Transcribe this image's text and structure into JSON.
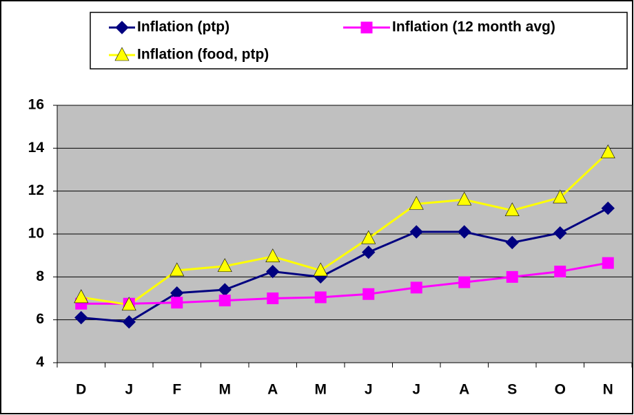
{
  "chart_data": {
    "type": "line",
    "categories": [
      "D",
      "J",
      "F",
      "M",
      "A",
      "M",
      "J",
      "J",
      "A",
      "S",
      "O",
      "N"
    ],
    "series": [
      {
        "name": "Inflation (ptp)",
        "color": "#000080",
        "marker": "diamond",
        "values": [
          6.1,
          5.9,
          7.25,
          7.4,
          8.25,
          8.0,
          9.15,
          10.1,
          10.1,
          9.6,
          10.05,
          11.2
        ]
      },
      {
        "name": "Inflation (12 month avg)",
        "color": "#ff00ff",
        "marker": "square",
        "values": [
          6.75,
          6.75,
          6.8,
          6.9,
          7.0,
          7.05,
          7.2,
          7.5,
          7.75,
          8.0,
          8.25,
          8.65
        ]
      },
      {
        "name": "Inflation (food, ptp)",
        "color": "#ffff00",
        "marker": "triangle",
        "values": [
          7.05,
          6.7,
          8.3,
          8.5,
          8.95,
          8.3,
          9.8,
          11.4,
          11.6,
          11.1,
          11.7,
          13.8
        ]
      }
    ],
    "ylim": [
      4,
      16
    ],
    "yticks": [
      4,
      6,
      8,
      10,
      12,
      14,
      16
    ],
    "grid": true,
    "legend": "top"
  }
}
